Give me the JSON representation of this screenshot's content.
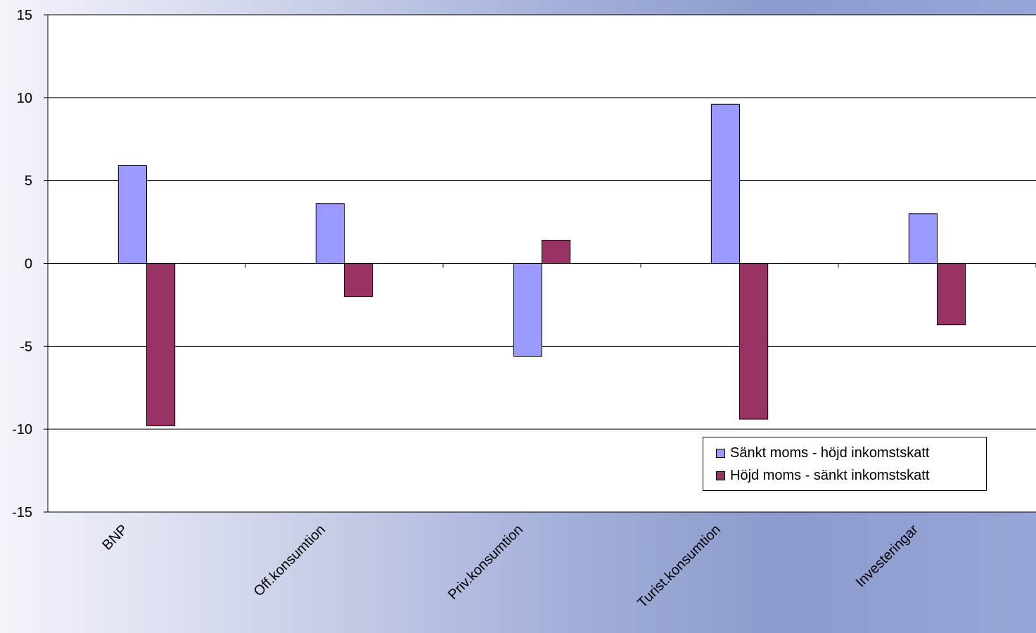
{
  "chart_data": {
    "type": "bar",
    "categories": [
      "BNP",
      "Off.konsumtion",
      "Priv.konsumtion",
      "Turist.konsumtion",
      "Investeringar"
    ],
    "series": [
      {
        "name": "Sänkt moms - höjd inkomstskatt",
        "values": [
          5.9,
          3.6,
          -5.6,
          9.6,
          3.0
        ],
        "color": "#9999ff"
      },
      {
        "name": "Höjd moms - sänkt inkomstskatt",
        "values": [
          -9.8,
          -2.0,
          1.4,
          -9.4,
          -3.7
        ],
        "color": "#993366"
      }
    ],
    "ylim": [
      -15,
      15
    ],
    "yticks": [
      "15",
      "10",
      "5",
      "0",
      "-5",
      "-10",
      "-15"
    ],
    "grid": true,
    "legend_position": "bottom-right",
    "plot_background": "#ffffff"
  }
}
